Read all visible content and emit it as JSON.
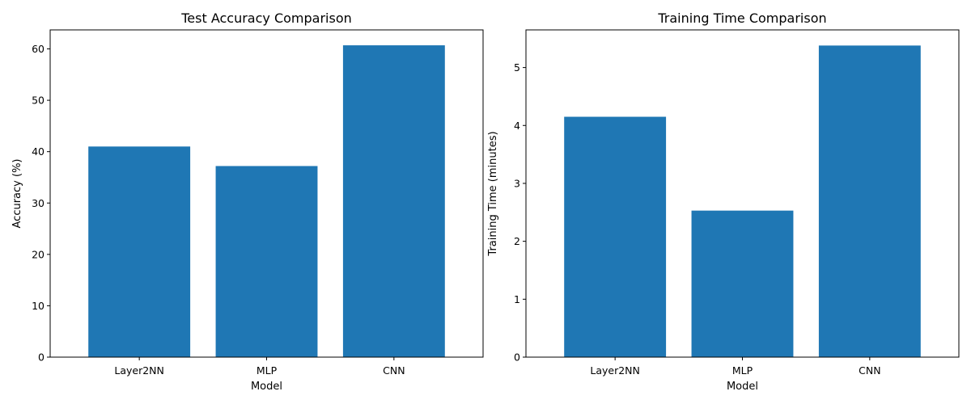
{
  "chart_data": [
    {
      "type": "bar",
      "title": "Test Accuracy Comparison",
      "xlabel": "Model",
      "ylabel": "Accuracy (%)",
      "categories": [
        "Layer2NN",
        "MLP",
        "CNN"
      ],
      "values": [
        41.0,
        37.2,
        60.7
      ],
      "ylim": [
        0,
        63.7
      ],
      "yticks": [
        0,
        10,
        20,
        30,
        40,
        50,
        60
      ],
      "color": "#1f77b4",
      "grid": false
    },
    {
      "type": "bar",
      "title": "Training Time Comparison",
      "xlabel": "Model",
      "ylabel": "Training Time (minutes)",
      "categories": [
        "Layer2NN",
        "MLP",
        "CNN"
      ],
      "values": [
        4.15,
        2.53,
        5.38
      ],
      "ylim": [
        0,
        5.65
      ],
      "yticks": [
        0,
        1,
        2,
        3,
        4,
        5
      ],
      "color": "#1f77b4",
      "grid": false
    }
  ]
}
